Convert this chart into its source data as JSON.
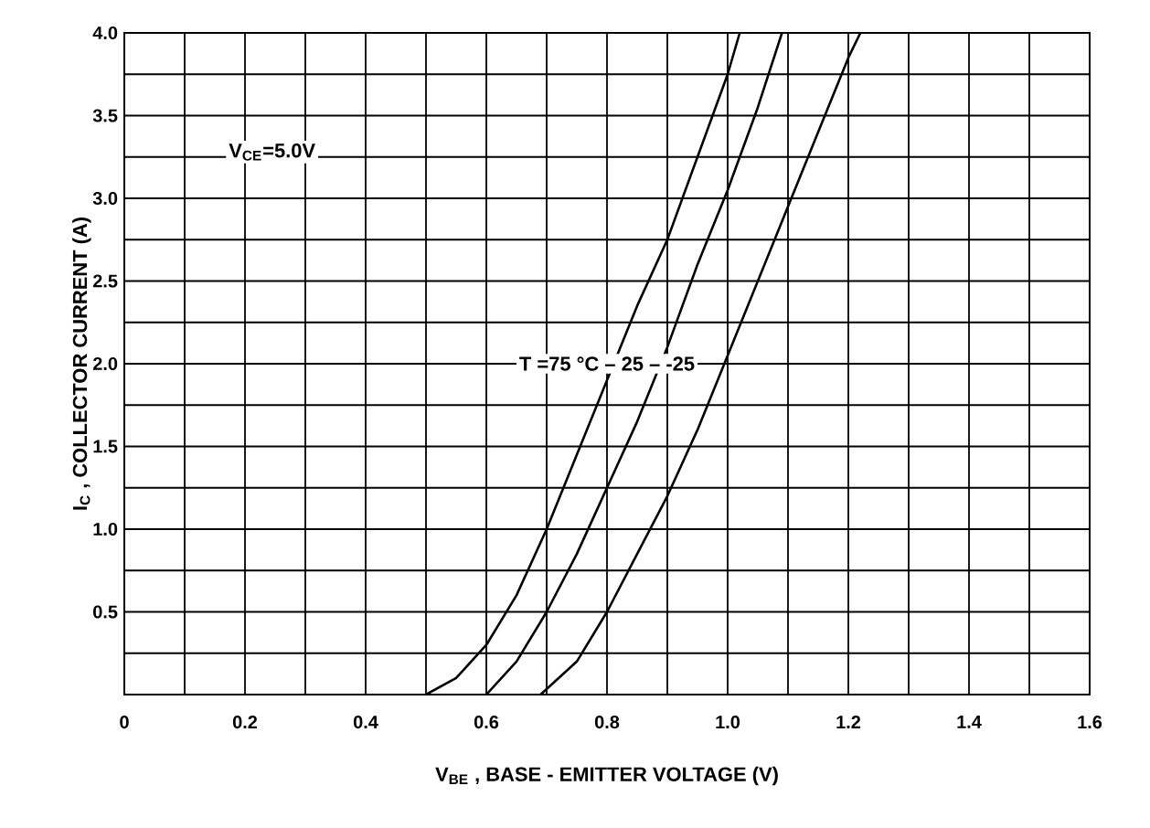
{
  "chart_data": {
    "type": "line",
    "xlabel": "V$_{BE}$ , BASE - EMITTER VOLTAGE  (V)",
    "ylabel": "I$_{C}$ , COLLECTOR CURRENT  (A)",
    "annotations": [
      "V$_{CE}$=5.0V",
      {
        "text": "T  =75 °C – 25 – -25",
        "x": 0.8,
        "y": 2.0
      }
    ],
    "series": [
      {
        "color": "#000000",
        "x": [
          0.5,
          0.55,
          0.6,
          0.65,
          0.7,
          0.75,
          0.8,
          0.85,
          0.9,
          0.95,
          1.0,
          1.02
        ],
        "values": [
          0,
          0.1,
          0.3,
          0.6,
          1.0,
          1.45,
          1.9,
          2.35,
          2.75,
          3.25,
          3.75,
          4.0
        ]
      },
      {
        "color": "#000000",
        "x": [
          0.6,
          0.65,
          0.7,
          0.75,
          0.8,
          0.85,
          0.9,
          0.95,
          1.0,
          1.05,
          1.09
        ],
        "values": [
          0,
          0.2,
          0.5,
          0.85,
          1.25,
          1.65,
          2.1,
          2.6,
          3.05,
          3.55,
          4.0
        ]
      },
      {
        "color": "#000000",
        "x": [
          0.69,
          0.75,
          0.8,
          0.85,
          0.9,
          0.95,
          1.0,
          1.05,
          1.1,
          1.15,
          1.2,
          1.22
        ],
        "values": [
          0,
          0.2,
          0.5,
          0.85,
          1.2,
          1.6,
          2.05,
          2.5,
          2.95,
          3.4,
          3.85,
          4.0
        ]
      }
    ],
    "xlim": [
      0,
      1.6
    ],
    "ylim": [
      0,
      4.0
    ],
    "xticks": [
      0,
      {
        "value": 0.1,
        "label": null
      },
      0.2,
      {
        "value": 0.3,
        "label": null
      },
      0.4,
      {
        "value": 0.5,
        "label": null
      },
      0.6,
      {
        "value": 0.7,
        "label": null
      },
      0.8,
      {
        "value": 0.9,
        "label": null
      },
      {
        "value": 1.0,
        "label": "1.0"
      },
      {
        "value": 1.1,
        "label": null
      },
      1.2,
      {
        "value": 1.3,
        "label": null
      },
      1.4,
      {
        "value": 1.5,
        "label": null
      },
      1.6
    ],
    "yticks": [
      {
        "value": 0,
        "label": null
      },
      {
        "value": 0.25,
        "label": null
      },
      0.5,
      {
        "value": 0.75,
        "label": null
      },
      {
        "value": 1.0,
        "label": "1.0"
      },
      {
        "value": 1.25,
        "label": null
      },
      1.5,
      {
        "value": 1.75,
        "label": null
      },
      {
        "value": 2.0,
        "label": "2.0"
      },
      {
        "value": 2.25,
        "label": null
      },
      2.5,
      {
        "value": 2.75,
        "label": null
      },
      {
        "value": 3.0,
        "label": "3.0"
      },
      {
        "value": 3.25,
        "label": null
      },
      3.5,
      {
        "value": 3.75,
        "label": null
      },
      {
        "value": 4.0,
        "label": "4.0"
      }
    ],
    "grid": true,
    "marker": "none",
    "line_style": "solid"
  }
}
